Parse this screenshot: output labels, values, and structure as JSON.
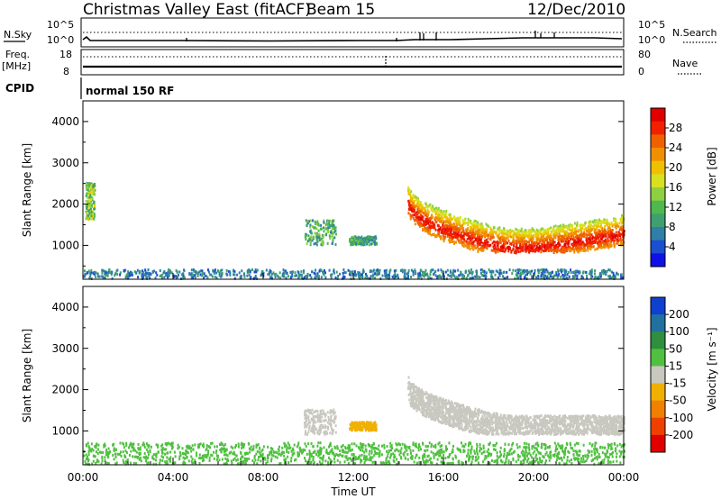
{
  "header": {
    "title": "Christmas Valley East (fitACF)",
    "beam": "Beam 15",
    "date": "12/Dec/2010"
  },
  "top_panel": {
    "nsky_label": "N.Sky",
    "nsky_ticks": [
      "10^5",
      "10^0"
    ],
    "nsearch_label": "N.Search",
    "nsearch_ticks": [
      "10^5",
      "10^0"
    ],
    "freq_label": "Freq.",
    "freq_unit": "[MHz]",
    "freq_ticks": [
      "18",
      "8"
    ],
    "nave_label": "Nave",
    "nave_ticks": [
      "80",
      "0"
    ],
    "cpid_label": "CPID",
    "cpid_value": "normal 150 RF"
  },
  "chart_data": [
    {
      "type": "heatmap",
      "name": "power",
      "ylabel": "Slant Range [km]",
      "ylim": [
        180,
        4500
      ],
      "yticks": [
        "4000",
        "3000",
        "2000",
        "1000"
      ],
      "ytick_values": [
        4000,
        3000,
        2000,
        1000
      ],
      "xlim": [
        0,
        24
      ],
      "colorbar": {
        "label": "Power [dB]",
        "ticks": [
          "28",
          "24",
          "20",
          "16",
          "12",
          "8",
          "4"
        ],
        "tick_values": [
          28,
          24,
          20,
          16,
          12,
          8,
          4
        ],
        "range": [
          0,
          32
        ],
        "colors": [
          "#1010e8",
          "#1a4fd0",
          "#2f7fa8",
          "#3f9f70",
          "#4fb84f",
          "#8fd040",
          "#d8e020",
          "#f0c000",
          "#f09000",
          "#f06000",
          "#f02000",
          "#e00000"
        ]
      },
      "features": [
        {
          "label": "near-range ground scatter",
          "t_start": 0,
          "t_end": 24,
          "range_km": [
            180,
            400
          ],
          "power_db": [
            4,
            10
          ]
        },
        {
          "label": "early scatter",
          "t_start": 0.1,
          "t_end": 0.5,
          "range_km": [
            1600,
            2500
          ],
          "power_db": [
            8,
            20
          ]
        },
        {
          "label": "midday patch",
          "t_start": 9.8,
          "t_end": 11.2,
          "range_km": [
            1000,
            1600
          ],
          "power_db": [
            6,
            16
          ]
        },
        {
          "label": "midday patch",
          "t_start": 11.8,
          "t_end": 13.0,
          "range_km": [
            1000,
            1200
          ],
          "power_db": [
            6,
            14
          ]
        },
        {
          "label": "evening scatter band",
          "t_start": 14.4,
          "t_end": 24,
          "range_km": [
            800,
            2400
          ],
          "power_db": [
            4,
            30
          ]
        }
      ]
    },
    {
      "type": "heatmap",
      "name": "velocity",
      "ylabel": "Slant Range [km]",
      "ylim": [
        180,
        4500
      ],
      "yticks": [
        "4000",
        "3000",
        "2000",
        "1000"
      ],
      "ytick_values": [
        4000,
        3000,
        2000,
        1000
      ],
      "xlabel": "Time UT",
      "xticks": [
        "00:00",
        "04:00",
        "08:00",
        "12:00",
        "16:00",
        "20:00",
        "00:00"
      ],
      "xtick_values": [
        0,
        4,
        8,
        12,
        16,
        20,
        24
      ],
      "xlim": [
        0,
        24
      ],
      "colorbar": {
        "label": "Velocity [m s⁻¹]",
        "ticks": [
          "200",
          "100",
          "50",
          "15",
          "-15",
          "-50",
          "-100",
          "-200"
        ],
        "tick_values": [
          200,
          100,
          50,
          15,
          -15,
          -50,
          -100,
          -200
        ],
        "colors": [
          "#e00000",
          "#f04000",
          "#f08000",
          "#f0b000",
          "#c8c8c0",
          "#50c040",
          "#2f8f3f",
          "#2070a0",
          "#1040d0"
        ]
      },
      "features": [
        {
          "label": "near-range ground scatter",
          "t_start": 0,
          "t_end": 24,
          "range_km": [
            180,
            700
          ],
          "velocity": [
            15,
            50
          ]
        },
        {
          "label": "ionospheric band",
          "t_start": 14.4,
          "t_end": 24,
          "range_km": [
            900,
            2200
          ],
          "velocity": [
            -15,
            15
          ]
        },
        {
          "label": "midday patch",
          "t_start": 9.8,
          "t_end": 11.2,
          "range_km": [
            900,
            1500
          ],
          "velocity": [
            -15,
            15
          ]
        },
        {
          "label": "midday patch",
          "t_start": 11.8,
          "t_end": 13.0,
          "range_km": [
            1000,
            1200
          ],
          "velocity": [
            -50,
            -15
          ]
        }
      ]
    }
  ],
  "colors": {
    "axis": "#000000",
    "ground_scatter": "#c8c8c0"
  }
}
